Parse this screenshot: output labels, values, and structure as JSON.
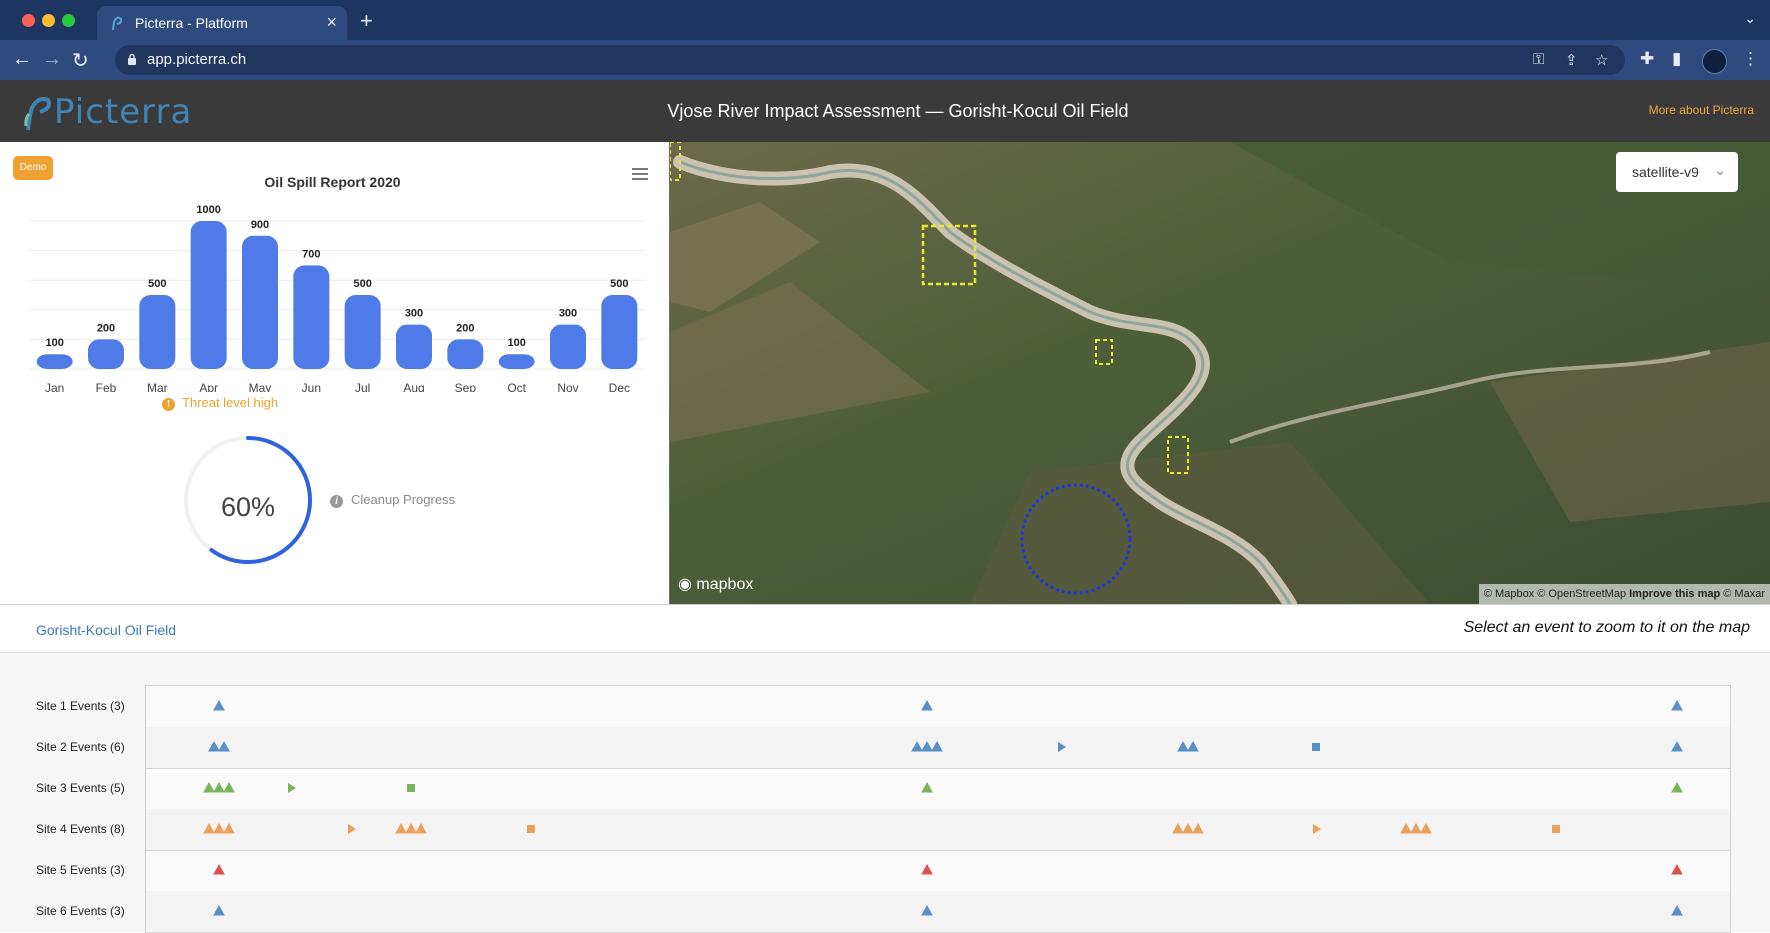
{
  "browser": {
    "tab_title": "Picterra - Platform",
    "url": "app.picterra.ch"
  },
  "header": {
    "logo": "Picterra",
    "title": "Vjose River Impact Assessment — Gorisht-Kocul Oil Field",
    "more_link": "More about Picterra"
  },
  "panel": {
    "badge": "Demo",
    "threat": "Threat level high",
    "progress_value": 60,
    "progress_label": "60%",
    "progress_caption": "Cleanup Progress"
  },
  "chart_data": {
    "type": "bar",
    "title": "Oil Spill Report 2020",
    "categories": [
      "Jan",
      "Feb",
      "Mar",
      "Apr",
      "May",
      "Jun",
      "Jul",
      "Aug",
      "Sep",
      "Oct",
      "Nov",
      "Dec"
    ],
    "values": [
      100,
      200,
      500,
      1000,
      900,
      700,
      500,
      300,
      200,
      100,
      300,
      500
    ],
    "ylim": [
      0,
      1000
    ],
    "data_labels": true,
    "grid": true
  },
  "map": {
    "style_select": "satellite-v9",
    "mapbox_logo": "mapbox",
    "attribution_pre": "© Mapbox © OpenStreetMap",
    "attribution_bold": "Improve this map",
    "attribution_post": "© Maxar"
  },
  "timeline": {
    "site_name": "Gorisht-Kocul Oil Field",
    "hint": "Select an event to zoom to it on the map",
    "rows": [
      {
        "label": "Site 1 Events (3)",
        "color": "#5b8fc7"
      },
      {
        "label": "Site 2 Events (6)",
        "color": "#5b8fc7"
      },
      {
        "label": "Site 3 Events (5)",
        "color": "#7ab55c"
      },
      {
        "label": "Site 4 Events (8)",
        "color": "#e9a15b"
      },
      {
        "label": "Site 5 Events (3)",
        "color": "#d9534f"
      },
      {
        "label": "Site 6 Events (3)",
        "color": "#5b8fc7"
      }
    ]
  }
}
